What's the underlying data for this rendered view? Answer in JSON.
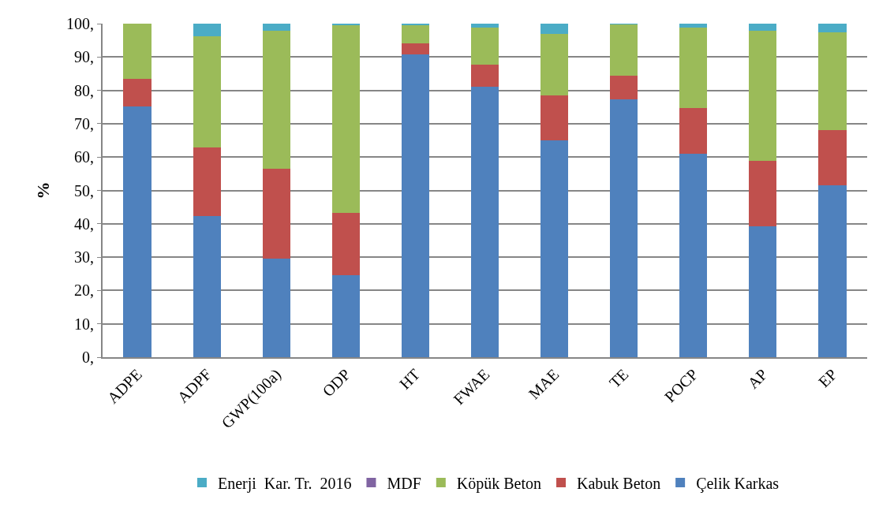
{
  "chart_data": {
    "type": "bar",
    "stacked": true,
    "ylabel": "%",
    "categories": [
      "ADPE",
      "ADPF",
      "GWP(100a)",
      "ODP",
      "HT",
      "FWAE",
      "MAE",
      "TE",
      "POCP",
      "AP",
      "EP"
    ],
    "series": [
      {
        "name": "Çelik Karkas",
        "color": "#4f81bd",
        "values": [
          75.2,
          42.2,
          29.5,
          24.6,
          90.8,
          81.1,
          65.0,
          77.4,
          61.0,
          39.2,
          51.6
        ]
      },
      {
        "name": "Kabuk Beton",
        "color": "#c0504d",
        "values": [
          8.2,
          20.8,
          27.1,
          18.6,
          3.2,
          6.7,
          13.4,
          7.0,
          13.7,
          19.6,
          16.6
        ]
      },
      {
        "name": "Köpük Beton",
        "color": "#9bbb59",
        "values": [
          16.6,
          33.3,
          41.2,
          56.3,
          5.5,
          11.0,
          18.6,
          15.4,
          24.1,
          39.0,
          29.1
        ]
      },
      {
        "name": "MDF",
        "color": "#8064a2",
        "values": [
          0,
          0,
          0,
          0,
          0,
          0,
          0,
          0,
          0,
          0,
          0
        ]
      },
      {
        "name": "Enerji  Kar. Tr.  2016",
        "color": "#4bacc6",
        "values": [
          0,
          3.7,
          2.2,
          0.5,
          0.5,
          1.2,
          3.0,
          0.2,
          1.2,
          2.2,
          2.7
        ]
      }
    ],
    "ylim": [
      0,
      100
    ],
    "yticks": [
      {
        "value": 0,
        "label": "0,"
      },
      {
        "value": 10,
        "label": "10,"
      },
      {
        "value": 20,
        "label": "20,"
      },
      {
        "value": 30,
        "label": "30,"
      },
      {
        "value": 40,
        "label": "40,"
      },
      {
        "value": 50,
        "label": "50,"
      },
      {
        "value": 60,
        "label": "60,"
      },
      {
        "value": 70,
        "label": "70,"
      },
      {
        "value": 80,
        "label": "80,"
      },
      {
        "value": 90,
        "label": "90,"
      },
      {
        "value": 100,
        "label": "100,"
      }
    ],
    "grid": "y",
    "legend": "bottom"
  }
}
